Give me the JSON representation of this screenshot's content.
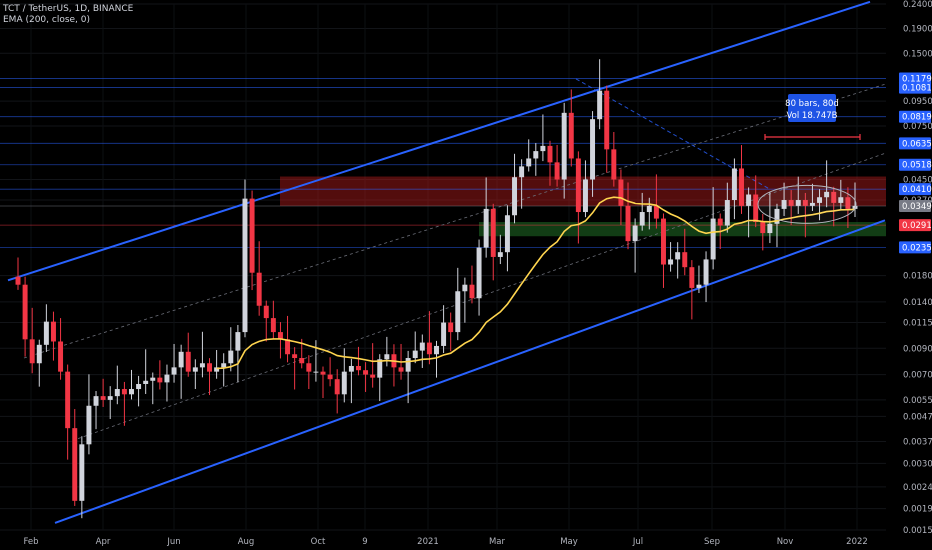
{
  "header": {
    "symbol_line": "TCT / TetherUS, 1D, BINANCE",
    "indicator_line": "EMA (200, close, 0)"
  },
  "chart_data": {
    "type": "candlestick",
    "scale": "log",
    "ylim": [
      0.00159,
      0.24
    ],
    "x_tick_labels": [
      "Feb",
      "Apr",
      "Jun",
      "Aug",
      "Oct",
      "9",
      "2021",
      "Mar",
      "May",
      "Jul",
      "Sep",
      "Nov",
      "2022"
    ],
    "y_tick_labels": [
      "0.24000",
      "0.19000",
      "0.15000",
      "0.09500",
      "0.07500",
      "0.04500",
      "0.03700",
      "0.01800",
      "0.01400",
      "0.01150",
      "0.00900",
      "0.00700",
      "0.00550",
      "0.00470",
      "0.00370",
      "0.00300",
      "0.00240",
      "0.00195",
      "0.00159"
    ],
    "price_levels": [
      {
        "label": "0.11797",
        "value": 0.11797,
        "color": "#2962ff"
      },
      {
        "label": "0.10816",
        "value": 0.10816,
        "color": "#2962ff"
      },
      {
        "label": "0.08192",
        "value": 0.08192,
        "color": "#2962ff"
      },
      {
        "label": "0.06354",
        "value": 0.06354,
        "color": "#2962ff"
      },
      {
        "label": "0.05182",
        "value": 0.05182,
        "color": "#2962ff"
      },
      {
        "label": "0.04104",
        "value": 0.04104,
        "color": "#2962ff"
      },
      {
        "label": "0.03495",
        "value": 0.03495,
        "color": "#787b86"
      },
      {
        "label": "0.02913",
        "value": 0.02913,
        "color": "#f23645"
      },
      {
        "label": "0.02356",
        "value": 0.02356,
        "color": "#2962ff"
      }
    ],
    "measure_tooltip": {
      "line1": "80 bars, 80d",
      "line2": "Vol 18.747B"
    },
    "ema_series": {
      "name": "EMA (200, close, 0)",
      "color": "#ffd54f"
    },
    "colors": {
      "up": "#d1d4dc",
      "down": "#f23645",
      "channel": "#2962ff",
      "ema": "#ffd54f",
      "resistance_zone": "#b71c1c",
      "support_zone": "#1b5e20"
    },
    "closes": [
      0.0165,
      0.0098,
      0.0078,
      0.0093,
      0.0116,
      0.0096,
      0.0072,
      0.0042,
      0.0021,
      0.0036,
      0.0052,
      0.0057,
      0.0055,
      0.0057,
      0.0061,
      0.0058,
      0.0061,
      0.0064,
      0.0066,
      0.0068,
      0.0065,
      0.007,
      0.0075,
      0.0087,
      0.0072,
      0.0075,
      0.0078,
      0.0072,
      0.0075,
      0.0078,
      0.0088,
      0.0105,
      0.0375,
      0.0185,
      0.0135,
      0.012,
      0.0105,
      0.0098,
      0.0085,
      0.0082,
      0.0078,
      0.0072,
      0.0072,
      0.007,
      0.0067,
      0.0058,
      0.0072,
      0.0076,
      0.0073,
      0.007,
      0.0068,
      0.0081,
      0.0085,
      0.0075,
      0.0072,
      0.0082,
      0.0088,
      0.0095,
      0.0085,
      0.0092,
      0.0115,
      0.0105,
      0.0155,
      0.0165,
      0.0145,
      0.0235,
      0.034,
      0.0215,
      0.0225,
      0.032,
      0.046,
      0.051,
      0.055,
      0.059,
      0.062,
      0.053,
      0.045,
      0.085,
      0.055,
      0.033,
      0.045,
      0.08,
      0.105,
      0.06,
      0.045,
      0.035,
      0.025,
      0.029,
      0.033,
      0.035,
      0.031,
      0.02,
      0.021,
      0.0225,
      0.0195,
      0.016,
      0.0165,
      0.021,
      0.031,
      0.029,
      0.037,
      0.05,
      0.035,
      0.039,
      0.03,
      0.027,
      0.0295,
      0.034,
      0.037,
      0.035,
      0.037,
      0.035,
      0.036,
      0.038,
      0.04,
      0.036,
      0.038,
      0.034,
      0.035
    ]
  }
}
